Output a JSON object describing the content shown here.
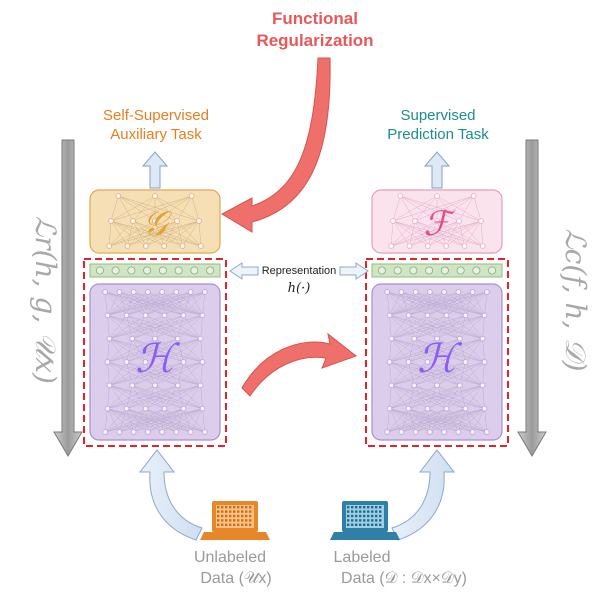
{
  "title": {
    "line1": "Functional",
    "line2": "Regularization",
    "color": "#e8575a"
  },
  "left": {
    "task_line1": "Self-Supervised",
    "task_line2": "Auxiliary Task",
    "task_color": "#e87e1e",
    "g_symbol": "𝒢",
    "h_symbol": "ℋ",
    "loss": "ℒr(h, g, 𝒰x)",
    "data_line1": "Unlabeled",
    "data_line2": "Data (𝒰x)"
  },
  "right": {
    "task_line1": "Supervised",
    "task_line2": "Prediction Task",
    "task_color": "#1a8f8a",
    "f_symbol": "ℱ",
    "h_symbol": "ℋ",
    "loss": "ℒc(f, h, 𝒟)",
    "data_line1": "Labeled",
    "data_line2": "Data (𝒟 : 𝒟x×𝒟y)"
  },
  "representation": {
    "line1": "Representation",
    "line2": "h(·)"
  },
  "colors": {
    "g_fill": "#f6dfb5",
    "g_stroke": "#e0a94f",
    "f_fill": "#fbe3ee",
    "f_stroke": "#e79bbd",
    "h_fill": "#dccdec",
    "h_stroke": "#a98fcf",
    "rep_fill": "#cfe5c4",
    "rep_stroke": "#8fbf7d",
    "dashed": "#e0242a",
    "h_text": "#8b5cf6",
    "g_text": "#e2a235",
    "f_text": "#e64a8c",
    "laptop_left": "#e8862a",
    "laptop_right": "#2f7fa6",
    "arrow_red": "#ef6f6a",
    "arrow_blue": "#dce8f5"
  }
}
